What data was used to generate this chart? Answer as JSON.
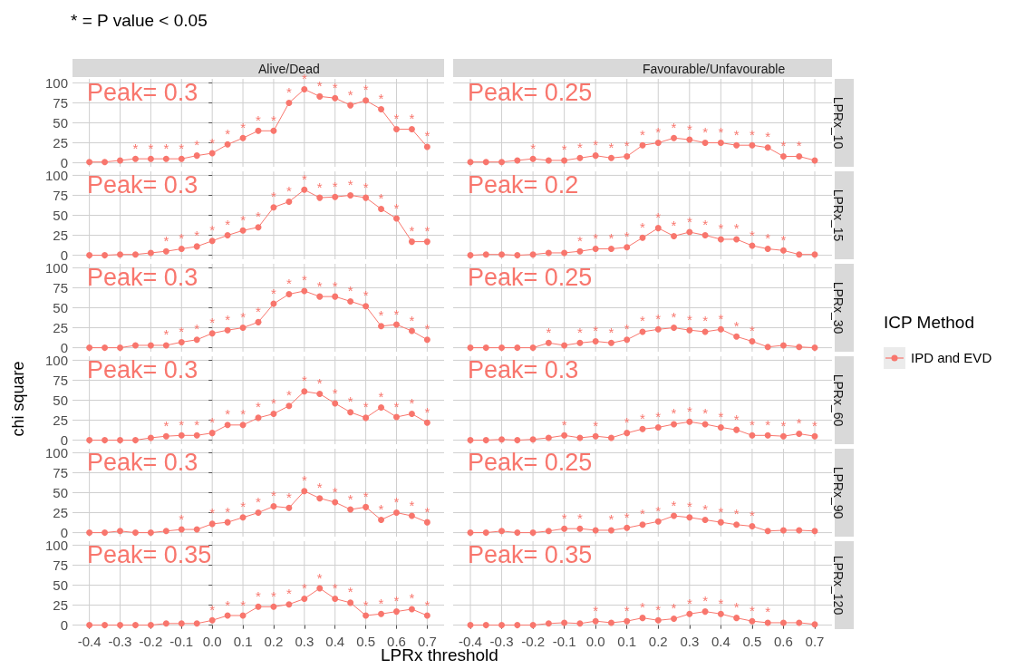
{
  "chart_data": [
    {
      "type": "line",
      "title": "Alive/Dead",
      "legend_title": "ICP Method",
      "legend": "right",
      "annotations": [
        "* = P value < 0.05",
        "Peak= 0.3"
      ],
      "tick_labels": "y",
      "grid": true,
      "marker": "circle",
      "xlim": [
        -0.455,
        0.755
      ],
      "ylim": [
        -5,
        105
      ],
      "xticks": [
        -0.4,
        -0.3,
        -0.2,
        -0.1,
        0,
        0.1,
        0.2,
        0.3,
        0.4,
        0.5,
        0.6,
        0.7
      ],
      "yticks": [
        0,
        25,
        50,
        75,
        100
      ],
      "x": [
        -0.4,
        -0.35,
        -0.3,
        -0.25,
        -0.2,
        -0.15,
        -0.1,
        -0.05,
        0,
        0.05,
        0.1,
        0.15,
        0.2,
        0.25,
        0.3,
        0.35,
        0.4,
        0.45,
        0.5,
        0.55,
        0.6,
        0.65,
        0.7
      ],
      "series": [
        {
          "name": "IPD and EVD",
          "color": "#f8766d",
          "values": [
            1,
            1,
            3,
            5,
            5,
            5,
            5,
            9,
            12,
            23,
            31,
            40,
            40,
            75,
            92,
            83,
            81,
            72,
            78,
            67,
            42,
            42,
            20
          ],
          "value_labels": [
            null,
            null,
            null,
            "*",
            "*",
            "*",
            "*",
            "*",
            "*",
            "*",
            "*",
            "*",
            "*",
            "*",
            "*",
            "*",
            "*",
            "*",
            "*",
            "*",
            "*",
            "*",
            "*"
          ]
        }
      ]
    },
    {
      "type": "line",
      "title": "Favourable/Unfavourable",
      "y2label": "LPRx_10",
      "annotations": [
        "Peak= 0.25"
      ],
      "tick_labels": false,
      "grid": true,
      "marker": "circle",
      "xlim": [
        -0.455,
        0.755
      ],
      "ylim": [
        -5,
        105
      ],
      "xticks": [
        -0.4,
        -0.3,
        -0.2,
        -0.1,
        0,
        0.1,
        0.2,
        0.3,
        0.4,
        0.5,
        0.6,
        0.7
      ],
      "yticks": [
        0,
        25,
        50,
        75,
        100
      ],
      "x": [
        -0.4,
        -0.35,
        -0.3,
        -0.25,
        -0.2,
        -0.15,
        -0.1,
        -0.05,
        0,
        0.05,
        0.1,
        0.15,
        0.2,
        0.25,
        0.3,
        0.35,
        0.4,
        0.45,
        0.5,
        0.55,
        0.6,
        0.65,
        0.7
      ],
      "series": [
        {
          "color": "#f8766d",
          "values": [
            1,
            1,
            1,
            3,
            5,
            3,
            3,
            6,
            9,
            6,
            8,
            22,
            25,
            31,
            29,
            25,
            25,
            22,
            22,
            19,
            8,
            8,
            3
          ],
          "value_labels": [
            null,
            null,
            null,
            null,
            "*",
            null,
            "*",
            "*",
            "*",
            "*",
            "*",
            "*",
            "*",
            "*",
            "*",
            "*",
            "*",
            "*",
            "*",
            "*",
            "*",
            "*",
            null
          ]
        }
      ]
    },
    {
      "type": "line",
      "annotations": [
        "Peak= 0.3"
      ],
      "tick_labels": "y",
      "grid": true,
      "marker": "circle",
      "xlim": [
        -0.455,
        0.755
      ],
      "ylim": [
        -5,
        105
      ],
      "xticks": [
        -0.4,
        -0.3,
        -0.2,
        -0.1,
        0,
        0.1,
        0.2,
        0.3,
        0.4,
        0.5,
        0.6,
        0.7
      ],
      "yticks": [
        0,
        25,
        50,
        75,
        100
      ],
      "x": [
        -0.4,
        -0.35,
        -0.3,
        -0.25,
        -0.2,
        -0.15,
        -0.1,
        -0.05,
        0,
        0.05,
        0.1,
        0.15,
        0.2,
        0.25,
        0.3,
        0.35,
        0.4,
        0.45,
        0.5,
        0.55,
        0.6,
        0.65,
        0.7
      ],
      "series": [
        {
          "color": "#f8766d",
          "values": [
            0,
            0,
            1,
            1,
            3,
            5,
            8,
            11,
            18,
            25,
            31,
            35,
            60,
            67,
            82,
            72,
            73,
            75,
            72,
            58,
            46,
            17,
            17
          ],
          "value_labels": [
            null,
            null,
            null,
            null,
            null,
            "*",
            "*",
            "*",
            "*",
            "*",
            "*",
            "*",
            "*",
            "*",
            "*",
            "*",
            "*",
            "*",
            "*",
            "*",
            "*",
            "*",
            "*"
          ]
        }
      ]
    },
    {
      "type": "line",
      "y2label": "LPRx_15",
      "annotations": [
        "Peak= 0.2"
      ],
      "tick_labels": false,
      "grid": true,
      "marker": "circle",
      "xlim": [
        -0.455,
        0.755
      ],
      "ylim": [
        -5,
        105
      ],
      "xticks": [
        -0.4,
        -0.3,
        -0.2,
        -0.1,
        0,
        0.1,
        0.2,
        0.3,
        0.4,
        0.5,
        0.6,
        0.7
      ],
      "yticks": [
        0,
        25,
        50,
        75,
        100
      ],
      "x": [
        -0.4,
        -0.35,
        -0.3,
        -0.25,
        -0.2,
        -0.15,
        -0.1,
        -0.05,
        0,
        0.05,
        0.1,
        0.15,
        0.2,
        0.25,
        0.3,
        0.35,
        0.4,
        0.45,
        0.5,
        0.55,
        0.6,
        0.65,
        0.7
      ],
      "series": [
        {
          "color": "#f8766d",
          "values": [
            0,
            1,
            1,
            0,
            1,
            3,
            3,
            5,
            8,
            8,
            10,
            22,
            34,
            24,
            29,
            25,
            20,
            20,
            12,
            8,
            6,
            1,
            1
          ],
          "value_labels": [
            null,
            null,
            null,
            null,
            null,
            null,
            null,
            "*",
            "*",
            "*",
            "*",
            "*",
            "*",
            "*",
            "*",
            "*",
            "*",
            "*",
            "*",
            "*",
            "*",
            null,
            null
          ]
        }
      ]
    },
    {
      "type": "line",
      "annotations": [
        "Peak= 0.3"
      ],
      "tick_labels": "y",
      "grid": true,
      "marker": "circle",
      "xlim": [
        -0.455,
        0.755
      ],
      "ylim": [
        -5,
        105
      ],
      "xticks": [
        -0.4,
        -0.3,
        -0.2,
        -0.1,
        0,
        0.1,
        0.2,
        0.3,
        0.4,
        0.5,
        0.6,
        0.7
      ],
      "yticks": [
        0,
        25,
        50,
        75,
        100
      ],
      "x": [
        -0.4,
        -0.35,
        -0.3,
        -0.25,
        -0.2,
        -0.15,
        -0.1,
        -0.05,
        0,
        0.05,
        0.1,
        0.15,
        0.2,
        0.25,
        0.3,
        0.35,
        0.4,
        0.45,
        0.5,
        0.55,
        0.6,
        0.65,
        0.7
      ],
      "series": [
        {
          "color": "#f8766d",
          "values": [
            0,
            0,
            0,
            3,
            3,
            3,
            7,
            10,
            18,
            22,
            25,
            32,
            55,
            67,
            71,
            64,
            64,
            58,
            52,
            27,
            29,
            21,
            10
          ],
          "value_labels": [
            null,
            null,
            null,
            null,
            null,
            "*",
            "*",
            "*",
            "*",
            "*",
            "*",
            "*",
            "*",
            "*",
            "*",
            "*",
            "*",
            "*",
            "*",
            "*",
            "*",
            "*",
            "*"
          ]
        }
      ]
    },
    {
      "type": "line",
      "y2label": "LPRx_30",
      "annotations": [
        "Peak= 0.25"
      ],
      "tick_labels": false,
      "grid": true,
      "marker": "circle",
      "xlim": [
        -0.455,
        0.755
      ],
      "ylim": [
        -5,
        105
      ],
      "xticks": [
        -0.4,
        -0.3,
        -0.2,
        -0.1,
        0,
        0.1,
        0.2,
        0.3,
        0.4,
        0.5,
        0.6,
        0.7
      ],
      "yticks": [
        0,
        25,
        50,
        75,
        100
      ],
      "x": [
        -0.4,
        -0.35,
        -0.3,
        -0.25,
        -0.2,
        -0.15,
        -0.1,
        -0.05,
        0,
        0.05,
        0.1,
        0.15,
        0.2,
        0.25,
        0.3,
        0.35,
        0.4,
        0.45,
        0.5,
        0.55,
        0.6,
        0.65,
        0.7
      ],
      "series": [
        {
          "color": "#f8766d",
          "values": [
            0,
            0,
            0,
            0,
            0,
            6,
            3,
            6,
            8,
            6,
            10,
            20,
            23,
            25,
            22,
            20,
            23,
            14,
            8,
            1,
            3,
            1,
            0
          ],
          "value_labels": [
            null,
            null,
            null,
            null,
            null,
            "*",
            null,
            "*",
            "*",
            "*",
            "*",
            "*",
            "*",
            "*",
            "*",
            "*",
            "*",
            "*",
            "*",
            null,
            null,
            null,
            null
          ]
        }
      ]
    },
    {
      "type": "line",
      "ylabel": "chi square",
      "annotations": [
        "Peak= 0.3"
      ],
      "tick_labels": "y",
      "grid": true,
      "marker": "circle",
      "xlim": [
        -0.455,
        0.755
      ],
      "ylim": [
        -5,
        105
      ],
      "xticks": [
        -0.4,
        -0.3,
        -0.2,
        -0.1,
        0,
        0.1,
        0.2,
        0.3,
        0.4,
        0.5,
        0.6,
        0.7
      ],
      "yticks": [
        0,
        25,
        50,
        75,
        100
      ],
      "x": [
        -0.4,
        -0.35,
        -0.3,
        -0.25,
        -0.2,
        -0.15,
        -0.1,
        -0.05,
        0,
        0.05,
        0.1,
        0.15,
        0.2,
        0.25,
        0.3,
        0.35,
        0.4,
        0.45,
        0.5,
        0.55,
        0.6,
        0.65,
        0.7
      ],
      "series": [
        {
          "color": "#f8766d",
          "values": [
            0,
            0,
            0,
            0,
            3,
            5,
            6,
            6,
            9,
            19,
            19,
            28,
            33,
            43,
            61,
            58,
            46,
            35,
            28,
            41,
            29,
            33,
            22
          ],
          "value_labels": [
            null,
            null,
            null,
            null,
            null,
            "*",
            "*",
            "*",
            "*",
            "*",
            "*",
            "*",
            "*",
            "*",
            "*",
            "*",
            "*",
            "*",
            "*",
            "*",
            "*",
            "*",
            "*"
          ]
        }
      ]
    },
    {
      "type": "line",
      "y2label": "LPRx_60",
      "annotations": [
        "Peak= 0.3"
      ],
      "tick_labels": false,
      "grid": true,
      "marker": "circle",
      "xlim": [
        -0.455,
        0.755
      ],
      "ylim": [
        -5,
        105
      ],
      "xticks": [
        -0.4,
        -0.3,
        -0.2,
        -0.1,
        0,
        0.1,
        0.2,
        0.3,
        0.4,
        0.5,
        0.6,
        0.7
      ],
      "yticks": [
        0,
        25,
        50,
        75,
        100
      ],
      "x": [
        -0.4,
        -0.35,
        -0.3,
        -0.25,
        -0.2,
        -0.15,
        -0.1,
        -0.05,
        0,
        0.05,
        0.1,
        0.15,
        0.2,
        0.25,
        0.3,
        0.35,
        0.4,
        0.45,
        0.5,
        0.55,
        0.6,
        0.65,
        0.7
      ],
      "series": [
        {
          "color": "#f8766d",
          "values": [
            0,
            0,
            1,
            0,
            1,
            3,
            6,
            3,
            5,
            3,
            9,
            14,
            16,
            20,
            23,
            20,
            16,
            13,
            6,
            6,
            5,
            8,
            5
          ],
          "value_labels": [
            null,
            null,
            null,
            null,
            null,
            null,
            "*",
            null,
            "*",
            null,
            "*",
            "*",
            "*",
            "*",
            "*",
            "*",
            "*",
            "*",
            "*",
            "*",
            "*",
            "*",
            "*"
          ]
        }
      ]
    },
    {
      "type": "line",
      "annotations": [
        "Peak= 0.3"
      ],
      "tick_labels": "y",
      "grid": true,
      "marker": "circle",
      "xlim": [
        -0.455,
        0.755
      ],
      "ylim": [
        -5,
        105
      ],
      "xticks": [
        -0.4,
        -0.3,
        -0.2,
        -0.1,
        0,
        0.1,
        0.2,
        0.3,
        0.4,
        0.5,
        0.6,
        0.7
      ],
      "yticks": [
        0,
        25,
        50,
        75,
        100
      ],
      "x": [
        -0.4,
        -0.35,
        -0.3,
        -0.25,
        -0.2,
        -0.15,
        -0.1,
        -0.05,
        0,
        0.05,
        0.1,
        0.15,
        0.2,
        0.25,
        0.3,
        0.35,
        0.4,
        0.45,
        0.5,
        0.55,
        0.6,
        0.65,
        0.7
      ],
      "series": [
        {
          "color": "#f8766d",
          "values": [
            0,
            0,
            2,
            0,
            0,
            2,
            4,
            4,
            11,
            13,
            19,
            25,
            33,
            31,
            52,
            43,
            38,
            29,
            32,
            16,
            25,
            21,
            13
          ],
          "value_labels": [
            null,
            null,
            null,
            null,
            null,
            null,
            "*",
            null,
            "*",
            "*",
            "*",
            "*",
            "*",
            "*",
            "*",
            "*",
            "*",
            "*",
            "*",
            "*",
            "*",
            "*",
            "*"
          ]
        }
      ]
    },
    {
      "type": "line",
      "y2label": "LPRx_90",
      "annotations": [
        "Peak= 0.25"
      ],
      "tick_labels": false,
      "grid": true,
      "marker": "circle",
      "xlim": [
        -0.455,
        0.755
      ],
      "ylim": [
        -5,
        105
      ],
      "xticks": [
        -0.4,
        -0.3,
        -0.2,
        -0.1,
        0,
        0.1,
        0.2,
        0.3,
        0.4,
        0.5,
        0.6,
        0.7
      ],
      "yticks": [
        0,
        25,
        50,
        75,
        100
      ],
      "x": [
        -0.4,
        -0.35,
        -0.3,
        -0.25,
        -0.2,
        -0.15,
        -0.1,
        -0.05,
        0,
        0.05,
        0.1,
        0.15,
        0.2,
        0.25,
        0.3,
        0.35,
        0.4,
        0.45,
        0.5,
        0.55,
        0.6,
        0.65,
        0.7
      ],
      "series": [
        {
          "color": "#f8766d",
          "values": [
            0,
            0,
            2,
            0,
            0,
            2,
            5,
            5,
            3,
            3,
            6,
            10,
            14,
            21,
            19,
            16,
            13,
            10,
            8,
            2,
            3,
            3,
            2
          ],
          "value_labels": [
            null,
            null,
            null,
            null,
            null,
            null,
            "*",
            "*",
            null,
            "*",
            "*",
            "*",
            "*",
            "*",
            "*",
            "*",
            "*",
            "*",
            "*",
            null,
            null,
            null,
            null
          ]
        }
      ]
    },
    {
      "type": "line",
      "xlabel": "LPRx threshold",
      "annotations": [
        "Peak= 0.35"
      ],
      "grid": true,
      "marker": "circle",
      "xlim": [
        -0.455,
        0.755
      ],
      "ylim": [
        -5,
        105
      ],
      "xticks": [
        -0.4,
        -0.3,
        -0.2,
        -0.1,
        {
          "value": 0,
          "label": "0.0"
        },
        0.1,
        0.2,
        0.3,
        0.4,
        0.5,
        0.6,
        0.7
      ],
      "yticks": [
        0,
        25,
        50,
        75,
        100
      ],
      "x": [
        -0.4,
        -0.35,
        -0.3,
        -0.25,
        -0.2,
        -0.15,
        -0.1,
        -0.05,
        0,
        0.05,
        0.1,
        0.15,
        0.2,
        0.25,
        0.3,
        0.35,
        0.4,
        0.45,
        0.5,
        0.55,
        0.6,
        0.65,
        0.7
      ],
      "series": [
        {
          "color": "#f8766d",
          "values": [
            0,
            0,
            0,
            0,
            0,
            2,
            2,
            2,
            6,
            12,
            12,
            23,
            23,
            26,
            33,
            46,
            33,
            28,
            12,
            14,
            17,
            20,
            12
          ],
          "value_labels": [
            null,
            null,
            null,
            null,
            null,
            null,
            null,
            null,
            "*",
            "*",
            "*",
            "*",
            "*",
            "*",
            "*",
            "*",
            "*",
            "*",
            "*",
            "*",
            "*",
            "*",
            "*"
          ]
        }
      ]
    },
    {
      "type": "line",
      "y2label": "LPRx_120",
      "annotations": [
        "Peak= 0.35"
      ],
      "tick_labels": "x",
      "grid": true,
      "marker": "circle",
      "xlim": [
        -0.455,
        0.755
      ],
      "ylim": [
        -5,
        105
      ],
      "xticks": [
        -0.4,
        -0.3,
        -0.2,
        -0.1,
        {
          "value": 0,
          "label": "0.0"
        },
        0.1,
        0.2,
        0.3,
        0.4,
        0.5,
        0.6,
        0.7
      ],
      "yticks": [
        0,
        25,
        50,
        75,
        100
      ],
      "x": [
        -0.4,
        -0.35,
        -0.3,
        -0.25,
        -0.2,
        -0.15,
        -0.1,
        -0.05,
        0,
        0.05,
        0.1,
        0.15,
        0.2,
        0.25,
        0.3,
        0.35,
        0.4,
        0.45,
        0.5,
        0.55,
        0.6,
        0.65,
        0.7
      ],
      "series": [
        {
          "color": "#f8766d",
          "values": [
            0,
            0,
            0,
            0,
            0,
            2,
            3,
            2,
            5,
            3,
            5,
            9,
            6,
            8,
            14,
            17,
            14,
            9,
            5,
            3,
            3,
            3,
            1
          ],
          "value_labels": [
            null,
            null,
            null,
            null,
            null,
            null,
            null,
            null,
            "*",
            null,
            "*",
            "*",
            "*",
            "*",
            "*",
            "*",
            "*",
            "*",
            "*",
            "*",
            null,
            null,
            null
          ]
        }
      ]
    }
  ]
}
